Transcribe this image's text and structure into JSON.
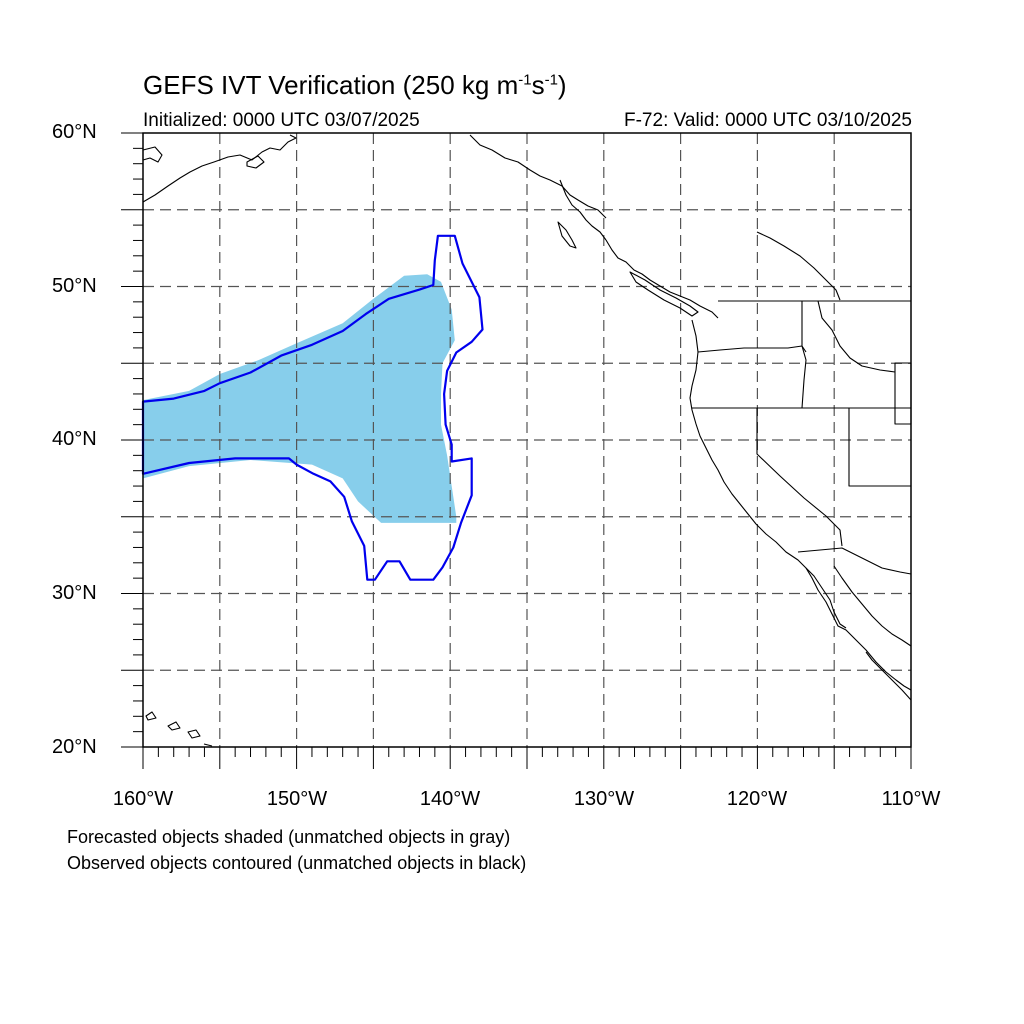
{
  "title": {
    "prefix": "GEFS IVT Verification (250 kg m",
    "sup1": "-1",
    "mid": "s",
    "sup2": "-1",
    "suffix": ")"
  },
  "initialized": "Initialized: 0000 UTC 03/07/2025",
  "valid": "F-72: Valid: 0000 UTC 03/10/2025",
  "lat_labels": [
    "60°N",
    "50°N",
    "40°N",
    "30°N",
    "20°N"
  ],
  "lon_labels": [
    "160°W",
    "150°W",
    "140°W",
    "130°W",
    "120°W",
    "110°W"
  ],
  "footnotes": [
    "Forecasted objects shaded (unmatched objects in gray)",
    "Observed objects contoured (unmatched objects in black)"
  ],
  "map": {
    "lon_range": [
      -160,
      -110
    ],
    "lat_range": [
      20,
      60
    ],
    "grid_interval_deg": 5,
    "label_interval_deg": 10,
    "projection": "cylindrical equidistant",
    "gridlines": "dashed"
  },
  "colors": {
    "forecast_fill": "#87ceeb",
    "observed_contour": "#0000ee",
    "coastline": "#000000"
  },
  "objects": {
    "forecast_matched": {
      "type": "shaded",
      "outline_lonlat": [
        [
          -160,
          42.6
        ],
        [
          -157,
          43.2
        ],
        [
          -155,
          44.3
        ],
        [
          -152.5,
          45.2
        ],
        [
          -150,
          46.3
        ],
        [
          -147,
          47.6
        ],
        [
          -145,
          49.2
        ],
        [
          -143,
          50.7
        ],
        [
          -141.5,
          50.8
        ],
        [
          -140.6,
          50.3
        ],
        [
          -139.9,
          48.5
        ],
        [
          -139.7,
          46.5
        ],
        [
          -140.5,
          45
        ],
        [
          -140.6,
          43
        ],
        [
          -140.6,
          41
        ],
        [
          -140.2,
          39
        ],
        [
          -139.9,
          37
        ],
        [
          -139.6,
          35
        ],
        [
          -139.6,
          34.6
        ],
        [
          -144.5,
          34.6
        ],
        [
          -146,
          36
        ],
        [
          -147,
          37.5
        ],
        [
          -149,
          38.4
        ],
        [
          -153,
          38.7
        ],
        [
          -157,
          38.3
        ],
        [
          -160,
          37.5
        ]
      ]
    },
    "observed_matched": {
      "type": "contour",
      "outline_lonlat": [
        [
          -160,
          42.5
        ],
        [
          -158,
          42.7
        ],
        [
          -156,
          43.2
        ],
        [
          -155,
          43.7
        ],
        [
          -153,
          44.4
        ],
        [
          -151,
          45.5
        ],
        [
          -149,
          46.2
        ],
        [
          -147,
          47.1
        ],
        [
          -145.5,
          48.2
        ],
        [
          -144,
          49.2
        ],
        [
          -142,
          49.8
        ],
        [
          -141.1,
          50.1
        ],
        [
          -141,
          51.7
        ],
        [
          -140.8,
          53.3
        ],
        [
          -139.7,
          53.3
        ],
        [
          -139.2,
          51.5
        ],
        [
          -138.1,
          49.3
        ],
        [
          -137.9,
          47.2
        ],
        [
          -138.6,
          46.4
        ],
        [
          -139.6,
          45.7
        ],
        [
          -140.2,
          44.5
        ],
        [
          -140.4,
          43
        ],
        [
          -140.3,
          41
        ],
        [
          -139.9,
          39.7
        ],
        [
          -139.9,
          38.6
        ],
        [
          -138.6,
          38.8
        ],
        [
          -138.6,
          36.4
        ],
        [
          -139.3,
          34.6
        ],
        [
          -139.8,
          33
        ],
        [
          -140.5,
          31.7
        ],
        [
          -141.1,
          30.9
        ],
        [
          -142.6,
          30.9
        ],
        [
          -143.3,
          32.1
        ],
        [
          -144.1,
          32.1
        ],
        [
          -144.9,
          30.9
        ],
        [
          -145.4,
          30.9
        ],
        [
          -145.6,
          33.1
        ],
        [
          -146.4,
          34.7
        ],
        [
          -146.9,
          36.3
        ],
        [
          -147.8,
          37.3
        ],
        [
          -148.9,
          37.8
        ],
        [
          -150,
          38.4
        ],
        [
          -150.5,
          38.8
        ],
        [
          -154,
          38.8
        ],
        [
          -157,
          38.5
        ],
        [
          -160,
          37.8
        ]
      ]
    }
  }
}
